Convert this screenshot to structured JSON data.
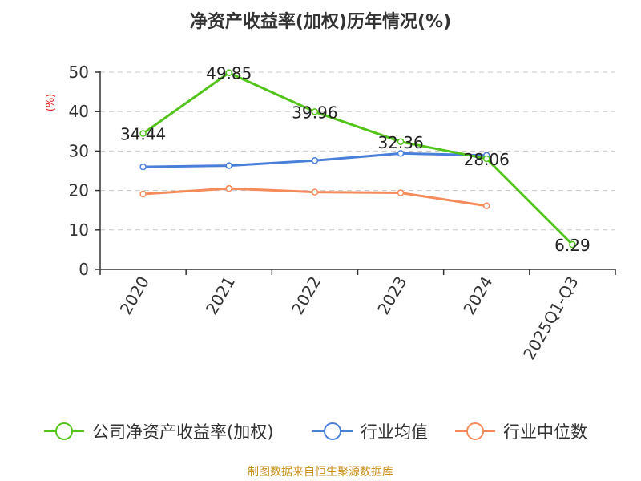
{
  "chart_data": {
    "type": "line",
    "title": "净资产收益率(加权)历年情况(%)",
    "ylabel": "(%)",
    "xlabel": "",
    "categories": [
      "2020",
      "2021",
      "2022",
      "2023",
      "2024",
      "2025Q1-Q3"
    ],
    "yticks": [
      "0",
      "10",
      "20",
      "30",
      "40",
      "50"
    ],
    "ylim": [
      0,
      50
    ],
    "grid": true,
    "legend_position": "bottom",
    "series": [
      {
        "name": "公司净资产收益率(加权)",
        "color": "#52c41a",
        "values": [
          34.44,
          49.85,
          39.96,
          32.36,
          28.06,
          6.29
        ],
        "data_labels": [
          "34.44",
          "49.85",
          "39.96",
          "32.36",
          "28.06",
          "6.29"
        ]
      },
      {
        "name": "行业均值",
        "color": "#4a7fd9",
        "values": [
          26.0,
          26.3,
          27.6,
          29.4,
          28.9,
          null
        ]
      },
      {
        "name": "行业中位数",
        "color": "#f58a5a",
        "values": [
          19.1,
          20.5,
          19.6,
          19.4,
          16.1,
          null
        ]
      }
    ]
  },
  "source": "制图数据来自恒生聚源数据库"
}
